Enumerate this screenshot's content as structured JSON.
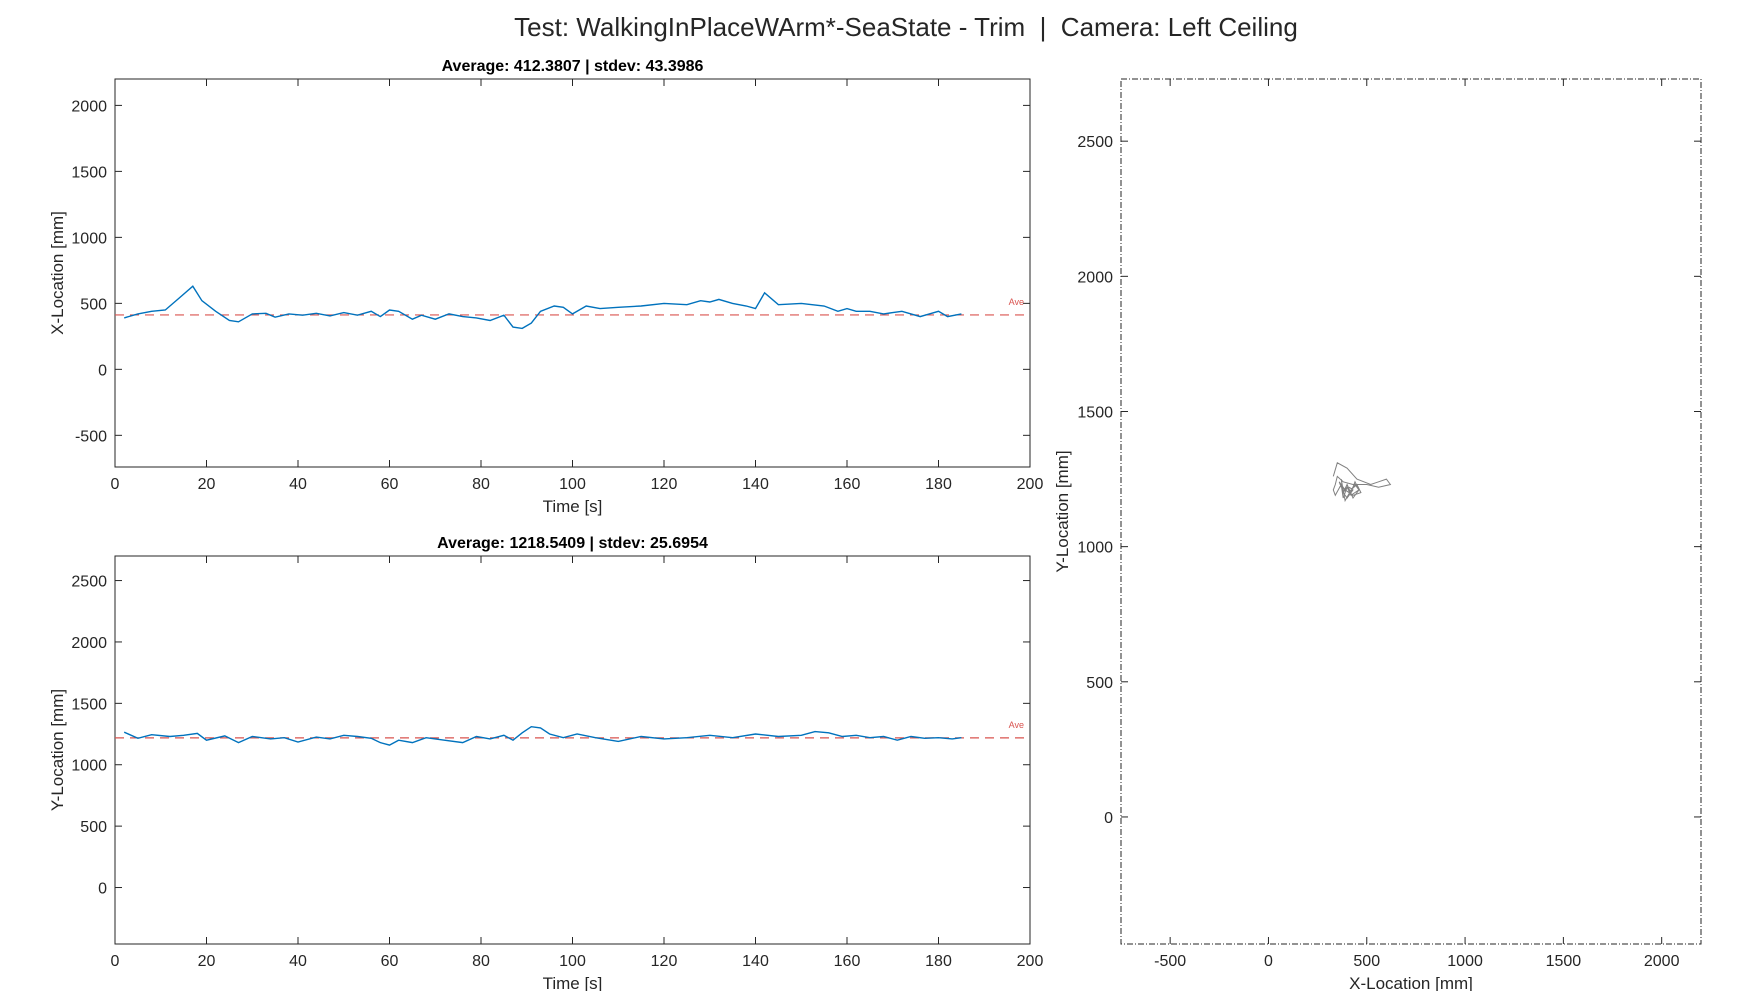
{
  "figure_title": "Test: WalkingInPlaceWArm*-SeaState - Trim  |  Camera: Left Ceiling",
  "chart_data": [
    {
      "type": "line",
      "title": "Average: 412.3807  |  stdev: 43.3986",
      "xlabel": "Time [s]",
      "ylabel": "X-Location [mm]",
      "xlim": [
        0,
        200
      ],
      "ylim": [
        -740,
        2200
      ],
      "xticks": [
        0,
        20,
        40,
        60,
        80,
        100,
        120,
        140,
        160,
        180,
        200
      ],
      "yticks": [
        -500,
        0,
        500,
        1000,
        1500,
        2000
      ],
      "average": 412.3807,
      "average_label": "Ave",
      "series": [
        {
          "color": "#0072bd",
          "x": [
            2,
            5,
            8,
            11,
            14,
            17,
            19,
            22,
            25,
            27,
            30,
            33,
            35,
            38,
            41,
            44,
            47,
            50,
            53,
            56,
            58,
            60,
            62,
            65,
            67,
            70,
            73,
            76,
            79,
            82,
            85,
            87,
            89,
            91,
            93,
            96,
            98,
            100,
            103,
            106,
            110,
            115,
            120,
            125,
            128,
            130,
            132,
            135,
            138,
            140,
            142,
            145,
            150,
            155,
            158,
            160,
            162,
            165,
            168,
            170,
            172,
            174,
            176,
            178,
            180,
            182,
            185
          ],
          "y": [
            390,
            420,
            440,
            450,
            540,
            630,
            520,
            440,
            370,
            360,
            420,
            425,
            395,
            420,
            410,
            425,
            405,
            430,
            410,
            440,
            400,
            450,
            440,
            380,
            410,
            380,
            420,
            400,
            390,
            370,
            410,
            320,
            310,
            350,
            440,
            480,
            470,
            420,
            480,
            460,
            470,
            480,
            500,
            490,
            520,
            510,
            530,
            500,
            480,
            460,
            580,
            490,
            500,
            480,
            440,
            460,
            440,
            440,
            420,
            430,
            440,
            420,
            400,
            420,
            440,
            400,
            420
          ]
        }
      ]
    },
    {
      "type": "line",
      "title": "Average: 1218.5409  |  stdev: 25.6954",
      "xlabel": "Time [s]",
      "ylabel": "Y-Location [mm]",
      "xlim": [
        0,
        200
      ],
      "ylim": [
        -460,
        2700
      ],
      "xticks": [
        0,
        20,
        40,
        60,
        80,
        100,
        120,
        140,
        160,
        180,
        200
      ],
      "yticks": [
        0,
        500,
        1000,
        1500,
        2000,
        2500
      ],
      "average": 1218.5409,
      "average_label": "Ave",
      "series": [
        {
          "color": "#0072bd",
          "x": [
            2,
            5,
            8,
            12,
            15,
            18,
            20,
            24,
            27,
            30,
            34,
            37,
            40,
            44,
            47,
            50,
            53,
            56,
            58,
            60,
            62,
            65,
            68,
            72,
            76,
            79,
            82,
            85,
            87,
            89,
            91,
            93,
            95,
            98,
            101,
            105,
            110,
            115,
            120,
            125,
            130,
            135,
            140,
            145,
            150,
            153,
            156,
            159,
            162,
            165,
            168,
            171,
            174,
            177,
            180,
            183,
            185
          ],
          "y": [
            1265,
            1215,
            1245,
            1230,
            1240,
            1255,
            1200,
            1235,
            1180,
            1230,
            1210,
            1220,
            1185,
            1225,
            1210,
            1240,
            1230,
            1215,
            1180,
            1160,
            1200,
            1180,
            1220,
            1200,
            1180,
            1230,
            1210,
            1240,
            1200,
            1260,
            1310,
            1300,
            1250,
            1220,
            1250,
            1220,
            1190,
            1230,
            1210,
            1220,
            1240,
            1220,
            1250,
            1230,
            1240,
            1270,
            1260,
            1230,
            1240,
            1220,
            1230,
            1200,
            1230,
            1215,
            1220,
            1210,
            1220
          ]
        }
      ]
    },
    {
      "type": "line",
      "title": "",
      "xlabel": "X-Location [mm]",
      "ylabel": "Y-Location [mm]",
      "xlim": [
        -750,
        2200
      ],
      "ylim": [
        -470,
        2730
      ],
      "xticks": [
        -500,
        0,
        500,
        1000,
        1500,
        2000
      ],
      "yticks": [
        0,
        500,
        1000,
        1500,
        2000,
        2500
      ],
      "series": [
        {
          "color": "#555555",
          "x": [
            330,
            350,
            400,
            450,
            520,
            560,
            600,
            620,
            560,
            500,
            430,
            380,
            350,
            340,
            330,
            340,
            370,
            380,
            400,
            420,
            440,
            460,
            430,
            400,
            380,
            370,
            390,
            420,
            450,
            470,
            430,
            390,
            360,
            370,
            410,
            440,
            460,
            420,
            400,
            380,
            400,
            430,
            410
          ],
          "y": [
            1260,
            1310,
            1290,
            1250,
            1230,
            1240,
            1250,
            1230,
            1220,
            1230,
            1230,
            1240,
            1260,
            1230,
            1210,
            1190,
            1230,
            1180,
            1220,
            1200,
            1240,
            1210,
            1180,
            1230,
            1200,
            1250,
            1170,
            1210,
            1230,
            1200,
            1190,
            1210,
            1240,
            1220,
            1200,
            1230,
            1210,
            1190,
            1220,
            1200,
            1180,
            1210,
            1220
          ]
        }
      ]
    }
  ]
}
